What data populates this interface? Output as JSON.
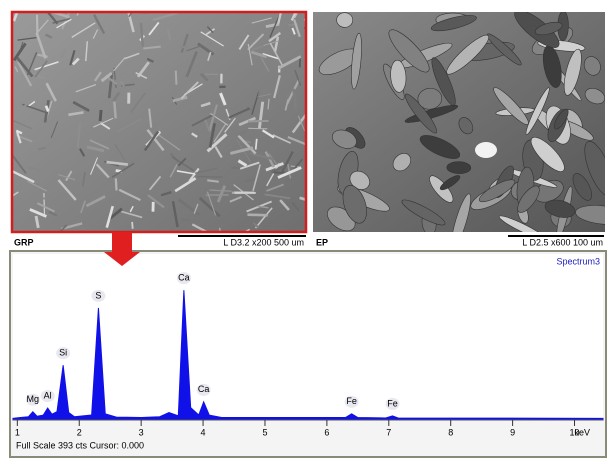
{
  "left_image": {
    "label": "GRP",
    "scale_text": "L D3.2   x200     500 um"
  },
  "right_image": {
    "label": "EP",
    "scale_text": "L D2.5   x600     100 um"
  },
  "chart_data": {
    "type": "area",
    "title": "Spectrum3",
    "footer": "Full Scale 393 cts Cursor: 0.000",
    "x_label": "keV",
    "color": "#1010e8",
    "xlim": [
      0.93,
      10.46
    ],
    "ylim": [
      0,
      393
    ],
    "xticks": [
      1,
      2,
      3,
      4,
      5,
      6,
      7,
      8,
      9,
      10
    ],
    "x": [
      0.93,
      1.05,
      1.18,
      1.25,
      1.32,
      1.42,
      1.49,
      1.56,
      1.64,
      1.74,
      1.83,
      1.92,
      2.2,
      2.31,
      2.42,
      2.6,
      3.0,
      3.3,
      3.45,
      3.6,
      3.69,
      3.8,
      3.93,
      4.01,
      4.1,
      4.3,
      6.3,
      6.4,
      6.5,
      6.95,
      7.06,
      7.15,
      10.46
    ],
    "values": [
      4,
      6,
      8,
      20,
      9,
      12,
      29,
      14,
      20,
      133,
      18,
      8,
      12,
      272,
      15,
      7,
      6,
      8,
      18,
      10,
      315,
      30,
      12,
      44,
      12,
      6,
      6,
      15,
      6,
      5,
      10,
      5,
      4
    ],
    "peak_labels": [
      {
        "text": "Mg",
        "x": 1.25
      },
      {
        "text": "Al",
        "x": 1.49
      },
      {
        "text": "Si",
        "x": 1.74
      },
      {
        "text": "S",
        "x": 2.31
      },
      {
        "text": "Ca",
        "x": 3.69
      },
      {
        "text": "Ca",
        "x": 4.01
      },
      {
        "text": "Fe",
        "x": 6.4
      },
      {
        "text": "Fe",
        "x": 7.06
      }
    ]
  }
}
